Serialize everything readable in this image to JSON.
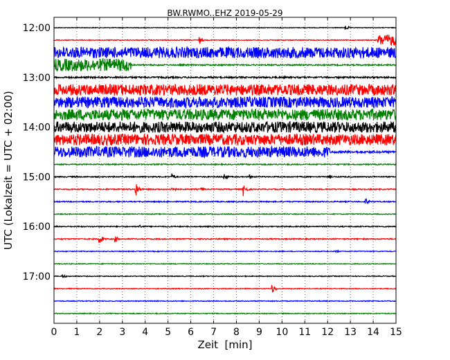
{
  "chart_data": {
    "type": "line",
    "title": "BW.RWMO..EHZ 2019-05-29",
    "xlabel": "Zeit  [min]",
    "ylabel": "UTC (Lokalzeit = UTC + 02:00)",
    "xlim": [
      0,
      15
    ],
    "x_ticks": [
      0,
      1,
      2,
      3,
      4,
      5,
      6,
      7,
      8,
      9,
      10,
      11,
      12,
      13,
      14,
      15
    ],
    "x_tick_labels": [
      "0",
      "1",
      "2",
      "3",
      "4",
      "5",
      "6",
      "7",
      "8",
      "9",
      "10",
      "11",
      "12",
      "13",
      "14",
      "15"
    ],
    "y_tick_labels": [
      "12:00",
      "13:00",
      "14:00",
      "15:00",
      "16:00",
      "17:00"
    ],
    "y_tick_rows": [
      0,
      4,
      8,
      12,
      16,
      20
    ],
    "grid": "vertical dotted",
    "row_colors": [
      "#000000",
      "#ff0000",
      "#0000ff",
      "#008000"
    ],
    "series": [
      {
        "start": "12:00",
        "color": "#000000",
        "amplitude": 0.5,
        "events": [
          {
            "x": 12.8,
            "amp": 4
          }
        ]
      },
      {
        "start": "12:15",
        "color": "#ff0000",
        "amplitude": 0.6,
        "events": [
          {
            "x": 6.4,
            "amp": 5
          }
        ],
        "segments": [
          {
            "from": 14.2,
            "to": 15,
            "amp": 8
          }
        ]
      },
      {
        "start": "12:30",
        "color": "#0000ff",
        "amplitude": 8,
        "events": []
      },
      {
        "start": "12:45",
        "color": "#008000",
        "amplitude": 1,
        "events": [],
        "segments": [
          {
            "from": 0,
            "to": 3.4,
            "amp": 9
          }
        ]
      },
      {
        "start": "13:00",
        "color": "#000000",
        "amplitude": 1.2,
        "events": []
      },
      {
        "start": "13:15",
        "color": "#ff0000",
        "amplitude": 8,
        "events": []
      },
      {
        "start": "13:30",
        "color": "#0000ff",
        "amplitude": 8,
        "events": []
      },
      {
        "start": "13:45",
        "color": "#008000",
        "amplitude": 8,
        "events": []
      },
      {
        "start": "14:00",
        "color": "#000000",
        "amplitude": 8,
        "events": []
      },
      {
        "start": "14:15",
        "color": "#ff0000",
        "amplitude": 8,
        "events": []
      },
      {
        "start": "14:30",
        "color": "#0000ff",
        "amplitude": 8,
        "events": [],
        "segments": [
          {
            "from": 12.1,
            "to": 15,
            "amp": 1.5
          }
        ]
      },
      {
        "start": "14:45",
        "color": "#008000",
        "amplitude": 0.8,
        "events": []
      },
      {
        "start": "15:00",
        "color": "#000000",
        "amplitude": 0.8,
        "events": [
          {
            "x": 5.2,
            "amp": 5
          },
          {
            "x": 7.5,
            "amp": 5
          },
          {
            "x": 8.6,
            "amp": 3
          },
          {
            "x": 12.1,
            "amp": 3
          }
        ]
      },
      {
        "start": "15:15",
        "color": "#ff0000",
        "amplitude": 0.8,
        "events": [
          {
            "x": 3.6,
            "amp": 12
          },
          {
            "x": 5.2,
            "amp": 5
          },
          {
            "x": 8.3,
            "amp": 10
          },
          {
            "x": 6.5,
            "amp": 3
          }
        ]
      },
      {
        "start": "15:30",
        "color": "#0000ff",
        "amplitude": 0.8,
        "events": [
          {
            "x": 13.7,
            "amp": 5
          }
        ]
      },
      {
        "start": "15:45",
        "color": "#008000",
        "amplitude": 0.6,
        "events": []
      },
      {
        "start": "16:00",
        "color": "#000000",
        "amplitude": 0.8,
        "events": [
          {
            "x": 3.8,
            "amp": 3
          }
        ]
      },
      {
        "start": "16:15",
        "color": "#ff0000",
        "amplitude": 0.8,
        "events": [
          {
            "x": 2.0,
            "amp": 8
          },
          {
            "x": 2.7,
            "amp": 5
          }
        ]
      },
      {
        "start": "16:30",
        "color": "#0000ff",
        "amplitude": 0.6,
        "events": [
          {
            "x": 12.4,
            "amp": 2
          }
        ]
      },
      {
        "start": "16:45",
        "color": "#008000",
        "amplitude": 0.6,
        "events": []
      },
      {
        "start": "17:00",
        "color": "#000000",
        "amplitude": 0.6,
        "events": [
          {
            "x": 0.4,
            "amp": 3
          }
        ]
      },
      {
        "start": "17:15",
        "color": "#ff0000",
        "amplitude": 0.6,
        "events": [
          {
            "x": 9.6,
            "amp": 6
          }
        ]
      },
      {
        "start": "17:30",
        "color": "#0000ff",
        "amplitude": 0.6,
        "events": []
      },
      {
        "start": "17:45",
        "color": "#008000",
        "amplitude": 0.6,
        "events": []
      }
    ]
  }
}
